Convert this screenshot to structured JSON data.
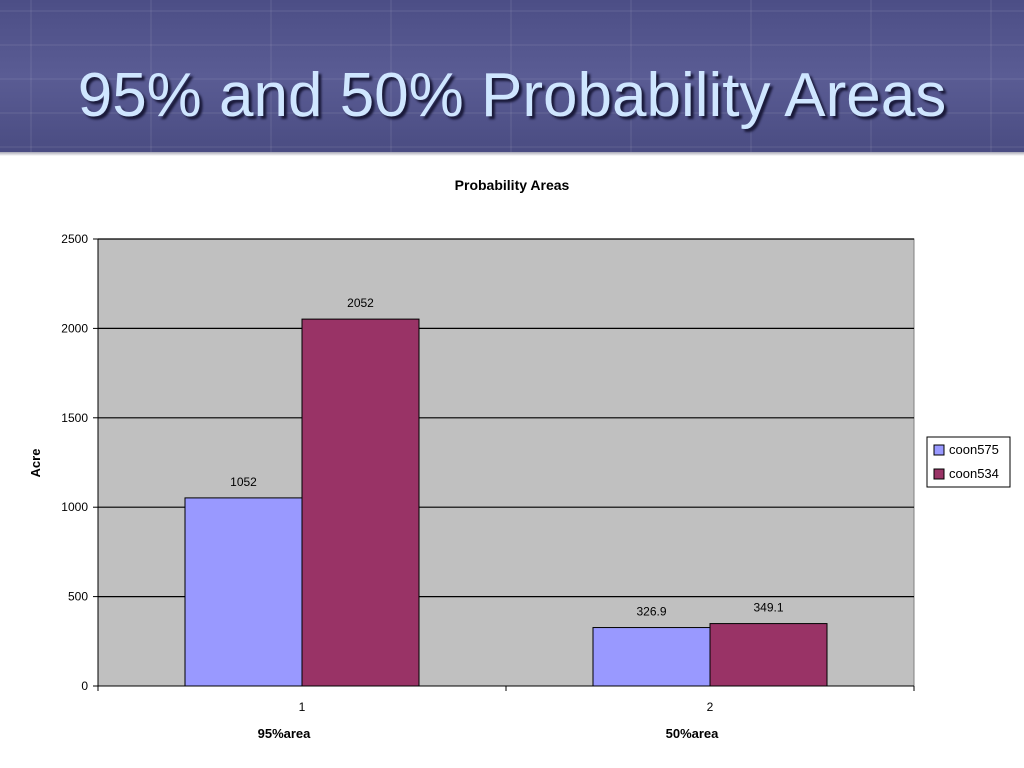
{
  "slide": {
    "title": "95% and 50% Probability Areas"
  },
  "chart_data": {
    "type": "bar",
    "title": "Probability Areas",
    "ylabel": "Acre",
    "xlabel": "",
    "categories": [
      "1",
      "2"
    ],
    "category_labels": [
      "95%area",
      "50%area"
    ],
    "series": [
      {
        "name": "coon575",
        "values": [
          1052,
          326.9
        ],
        "color": "#9999ff"
      },
      {
        "name": "coon534",
        "values": [
          2052,
          349.1
        ],
        "color": "#993366"
      }
    ],
    "data_labels": [
      [
        "1052",
        "326.9"
      ],
      [
        "2052",
        "349.1"
      ]
    ],
    "yticks": [
      "0",
      "500",
      "1000",
      "1500",
      "2000",
      "2500"
    ],
    "ylim": [
      0,
      2500
    ],
    "grid": true,
    "legend_position": "right",
    "plot_background": "#c0c0c0"
  }
}
